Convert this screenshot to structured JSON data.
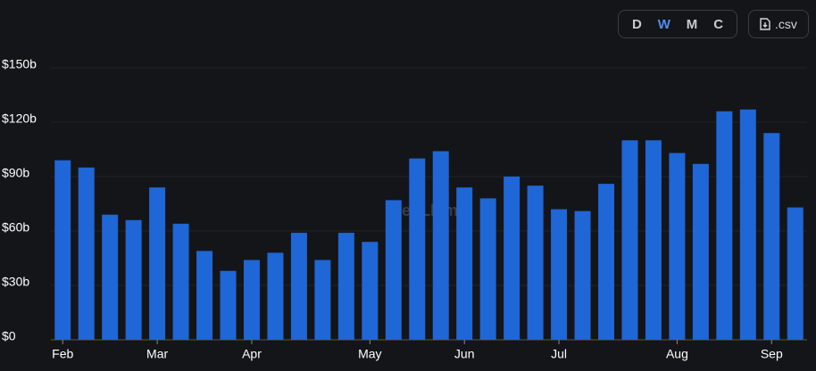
{
  "controls": {
    "intervals": [
      "D",
      "W",
      "M",
      "C"
    ],
    "selected": "W",
    "download": ".csv"
  },
  "watermark": "DefiLlama",
  "chart_data": {
    "type": "bar",
    "color": "#1f66d6",
    "grid": true,
    "categories": [
      "Feb",
      null,
      null,
      null,
      "Mar",
      null,
      null,
      null,
      "Apr",
      null,
      null,
      null,
      null,
      "May",
      null,
      null,
      null,
      "Jun",
      null,
      null,
      null,
      "Jul",
      null,
      null,
      null,
      null,
      "Aug",
      null,
      null,
      null,
      "Sep",
      null
    ],
    "values": [
      99,
      95,
      69,
      66,
      84,
      64,
      49,
      38,
      44,
      48,
      59,
      44,
      59,
      54,
      77,
      100,
      104,
      84,
      78,
      90,
      85,
      72,
      71,
      86,
      110,
      110,
      103,
      97,
      126,
      127,
      114,
      73
    ],
    "ylim": [
      0,
      150
    ],
    "yticks": [
      {
        "value": 0,
        "label": "$0"
      },
      {
        "value": 30,
        "label": "$30b"
      },
      {
        "value": 60,
        "label": "$60b"
      },
      {
        "value": 90,
        "label": "$90b"
      },
      {
        "value": 120,
        "label": "$120b"
      },
      {
        "value": 150,
        "label": "$150b"
      }
    ]
  }
}
